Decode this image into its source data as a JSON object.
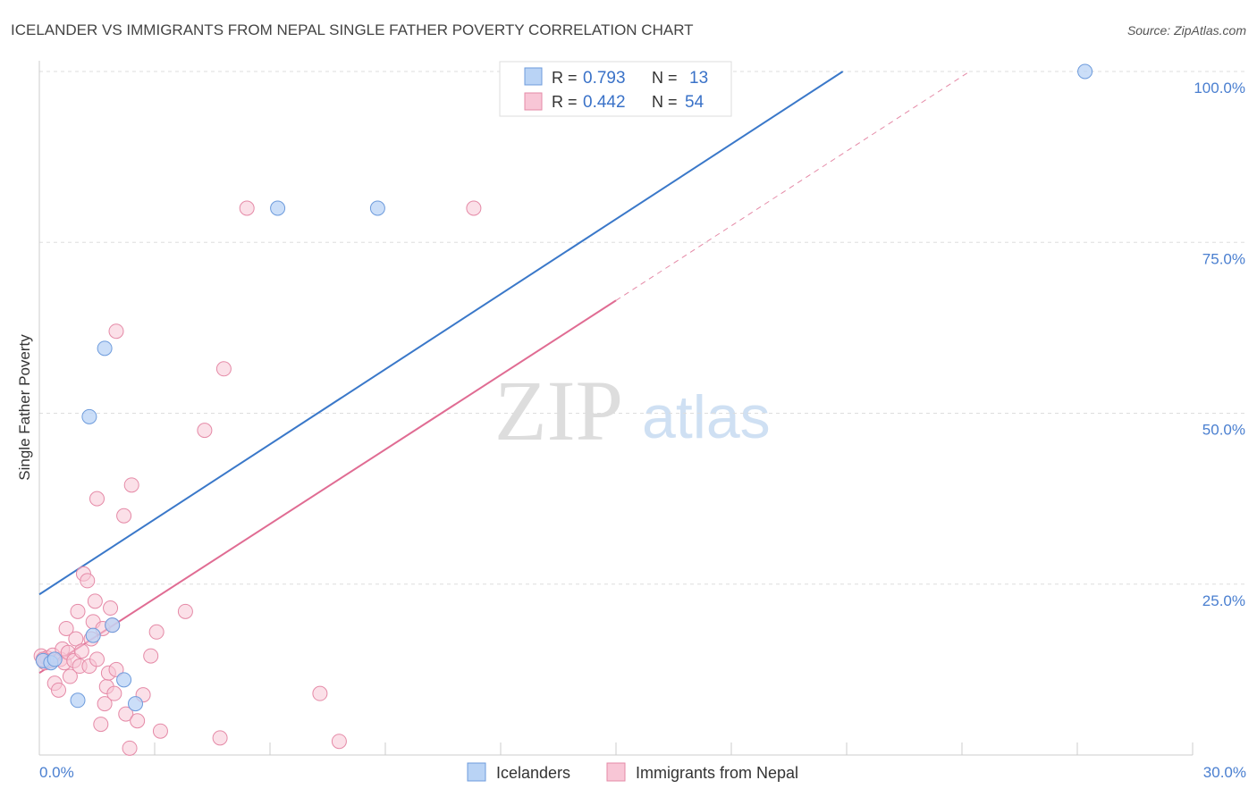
{
  "title": "ICELANDER VS IMMIGRANTS FROM NEPAL SINGLE FATHER POVERTY CORRELATION CHART",
  "source": "Source: ZipAtlas.com",
  "watermark": {
    "zip": "ZIP",
    "atlas": "atlas"
  },
  "colors": {
    "blue_fill": "#b9d3f5",
    "blue_stroke": "#6d9bdc",
    "blue_line": "#3a78c9",
    "pink_fill": "#f8c6d6",
    "pink_stroke": "#e58aa7",
    "pink_line": "#e06c93",
    "grid": "#dddddd",
    "tick_text": "#4a7fd0"
  },
  "legend": {
    "r_label": "R =",
    "n_label": "N =",
    "rows": [
      {
        "series": "Icelanders",
        "r": "0.793",
        "n": "13"
      },
      {
        "series": "Immigrants from Nepal",
        "r": "0.442",
        "n": "54"
      }
    ]
  },
  "chart_data": {
    "type": "scatter",
    "title": "ICELANDER VS IMMIGRANTS FROM NEPAL SINGLE FATHER POVERTY CORRELATION CHART",
    "xlabel": "",
    "ylabel": "Single Father Poverty",
    "xlim": [
      0,
      30
    ],
    "ylim": [
      0,
      100
    ],
    "x_tick_labels": [
      "0.0%",
      "30.0%"
    ],
    "y_ticks": [
      25,
      50,
      75,
      100
    ],
    "y_tick_labels": [
      "25.0%",
      "50.0%",
      "75.0%",
      "100.0%"
    ],
    "grid": true,
    "series": [
      {
        "name": "Icelanders",
        "color": "#6d9bdc",
        "r": 0.793,
        "n": 13,
        "trend": {
          "x": [
            0,
            20.9
          ],
          "y": [
            23.5,
            100
          ]
        },
        "points": [
          {
            "x": 0.1,
            "y": 13.8
          },
          {
            "x": 0.3,
            "y": 13.5
          },
          {
            "x": 0.4,
            "y": 14.0
          },
          {
            "x": 1.0,
            "y": 8.0
          },
          {
            "x": 1.3,
            "y": 49.5
          },
          {
            "x": 1.4,
            "y": 17.5
          },
          {
            "x": 1.7,
            "y": 59.5
          },
          {
            "x": 1.9,
            "y": 19.0
          },
          {
            "x": 2.2,
            "y": 11.0
          },
          {
            "x": 2.5,
            "y": 7.5
          },
          {
            "x": 6.2,
            "y": 80.0
          },
          {
            "x": 8.8,
            "y": 80.0
          },
          {
            "x": 27.2,
            "y": 100.0
          }
        ]
      },
      {
        "name": "Immigrants from Nepal",
        "color": "#e58aa7",
        "r": 0.442,
        "n": 54,
        "trend": {
          "x": [
            0,
            15.0
          ],
          "y": [
            12.0,
            66.5
          ]
        },
        "trend_dashed": {
          "x": [
            15.0,
            24.2
          ],
          "y": [
            66.5,
            100
          ]
        },
        "points": [
          {
            "x": 0.05,
            "y": 14.5
          },
          {
            "x": 0.15,
            "y": 13.5
          },
          {
            "x": 0.2,
            "y": 14.2
          },
          {
            "x": 0.3,
            "y": 13.8
          },
          {
            "x": 0.35,
            "y": 14.6
          },
          {
            "x": 0.4,
            "y": 10.5
          },
          {
            "x": 0.5,
            "y": 9.5
          },
          {
            "x": 0.55,
            "y": 14.0
          },
          {
            "x": 0.6,
            "y": 15.5
          },
          {
            "x": 0.65,
            "y": 13.5
          },
          {
            "x": 0.7,
            "y": 18.5
          },
          {
            "x": 0.75,
            "y": 15.0
          },
          {
            "x": 0.8,
            "y": 11.5
          },
          {
            "x": 0.9,
            "y": 13.8
          },
          {
            "x": 0.95,
            "y": 17.0
          },
          {
            "x": 1.0,
            "y": 21.0
          },
          {
            "x": 1.05,
            "y": 13.0
          },
          {
            "x": 1.1,
            "y": 15.2
          },
          {
            "x": 1.15,
            "y": 26.5
          },
          {
            "x": 1.25,
            "y": 25.5
          },
          {
            "x": 1.3,
            "y": 13.0
          },
          {
            "x": 1.35,
            "y": 17.0
          },
          {
            "x": 1.4,
            "y": 19.5
          },
          {
            "x": 1.45,
            "y": 22.5
          },
          {
            "x": 1.5,
            "y": 14.0
          },
          {
            "x": 1.5,
            "y": 37.5
          },
          {
            "x": 1.6,
            "y": 4.5
          },
          {
            "x": 1.65,
            "y": 18.5
          },
          {
            "x": 1.7,
            "y": 7.5
          },
          {
            "x": 1.75,
            "y": 10.0
          },
          {
            "x": 1.8,
            "y": 12.0
          },
          {
            "x": 1.85,
            "y": 21.5
          },
          {
            "x": 1.9,
            "y": 19.0
          },
          {
            "x": 1.95,
            "y": 9.0
          },
          {
            "x": 2.0,
            "y": 12.5
          },
          {
            "x": 2.0,
            "y": 62.0
          },
          {
            "x": 2.2,
            "y": 35.0
          },
          {
            "x": 2.25,
            "y": 6.0
          },
          {
            "x": 2.35,
            "y": 1.0
          },
          {
            "x": 2.4,
            "y": 39.5
          },
          {
            "x": 2.55,
            "y": 5.0
          },
          {
            "x": 2.7,
            "y": 8.8
          },
          {
            "x": 2.9,
            "y": 14.5
          },
          {
            "x": 3.05,
            "y": 18.0
          },
          {
            "x": 3.15,
            "y": 3.5
          },
          {
            "x": 3.8,
            "y": 21.0
          },
          {
            "x": 4.3,
            "y": 47.5
          },
          {
            "x": 4.7,
            "y": 2.5
          },
          {
            "x": 4.8,
            "y": 56.5
          },
          {
            "x": 5.4,
            "y": 80.0
          },
          {
            "x": 7.3,
            "y": 9.0
          },
          {
            "x": 7.8,
            "y": 2.0
          },
          {
            "x": 11.3,
            "y": 80.0
          },
          {
            "x": 0.1,
            "y": 14.0
          }
        ]
      }
    ]
  }
}
